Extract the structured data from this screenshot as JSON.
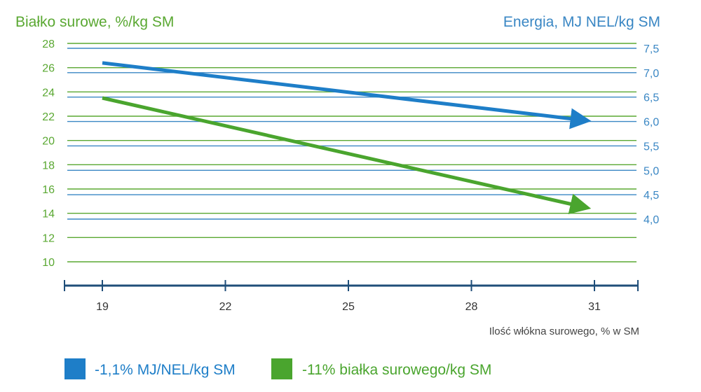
{
  "chart_data": {
    "type": "line",
    "title_left": "Białko surowe, %/kg SM",
    "title_right": "Energia, MJ NEL/kg SM",
    "xlabel": "Ilość włókna surowego, % w SM",
    "x_ticks": [
      "19",
      "22",
      "25",
      "28",
      "31"
    ],
    "xlim": [
      18,
      32
    ],
    "y_left": {
      "ticks": [
        "10",
        "12",
        "14",
        "16",
        "18",
        "20",
        "22",
        "24",
        "26",
        "28"
      ],
      "ylim": [
        10,
        28
      ],
      "color": "#5aa832"
    },
    "y_right": {
      "ticks": [
        "4,0",
        "4,5",
        "5,0",
        "5,5",
        "6,0",
        "6,5",
        "7,0",
        "7,5"
      ],
      "ylim": [
        4.0,
        7.5
      ],
      "color": "#3a87c4"
    },
    "grid": true,
    "series": [
      {
        "axis": "right",
        "color": "#1e7ec8",
        "x": [
          19,
          30.5
        ],
        "y": [
          7.2,
          6.05
        ]
      },
      {
        "axis": "left",
        "color": "#4aa52e",
        "x": [
          19,
          30.5
        ],
        "y": [
          23.5,
          14.7
        ]
      }
    ],
    "legend": [
      {
        "label": "-1,1% MJ/NEL/kg SM",
        "color": "#1e7ec8"
      },
      {
        "label": "-11% białka surowego/kg SM",
        "color": "#4aa52e"
      }
    ],
    "legend_position": "bottom",
    "axis_color": "#1f4e79"
  }
}
